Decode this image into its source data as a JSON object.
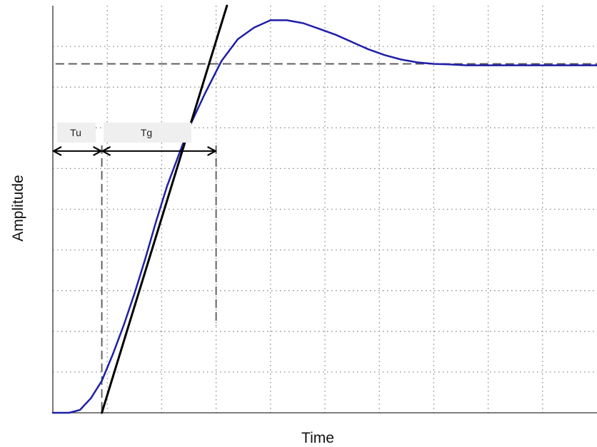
{
  "chart_data": {
    "type": "line",
    "title": "",
    "xlabel": "Time",
    "ylabel": "Amplitude",
    "xlim": [
      0,
      10
    ],
    "ylim": [
      0,
      1.4
    ],
    "grid": true,
    "tick_labels_shown": false,
    "series": [
      {
        "role": "step-response",
        "color": "#1f1fa8",
        "x": [
          0.0,
          0.3,
          0.5,
          0.7,
          0.9,
          1.1,
          1.3,
          1.5,
          1.7,
          1.9,
          2.1,
          2.3,
          2.5,
          2.8,
          3.1,
          3.4,
          3.7,
          4.0,
          4.3,
          4.6,
          4.9,
          5.2,
          5.5,
          5.8,
          6.1,
          6.4,
          6.7,
          7.0,
          7.3,
          7.6,
          7.9,
          8.2,
          8.5,
          8.8,
          9.1,
          9.4,
          9.7,
          10.0
        ],
        "y": [
          0.0,
          0.0,
          0.01,
          0.05,
          0.11,
          0.2,
          0.3,
          0.41,
          0.53,
          0.66,
          0.78,
          0.88,
          0.98,
          1.1,
          1.21,
          1.285,
          1.325,
          1.35,
          1.35,
          1.34,
          1.32,
          1.3,
          1.275,
          1.25,
          1.23,
          1.215,
          1.205,
          1.2,
          1.198,
          1.195,
          1.195,
          1.195,
          1.195,
          1.195,
          1.195,
          1.195,
          1.195,
          1.195
        ]
      },
      {
        "role": "inflection-tangent",
        "color": "#000000",
        "x": [
          0.9,
          3.2
        ],
        "y": [
          0.0,
          1.4
        ]
      }
    ],
    "reference_lines": {
      "steady_state_y": 1.2,
      "tu_x": 0.9,
      "tg_end_x": 3.0
    },
    "annotations": {
      "tu_label": "Tu",
      "tg_label": "Tg",
      "arrow_y": 0.9
    }
  }
}
